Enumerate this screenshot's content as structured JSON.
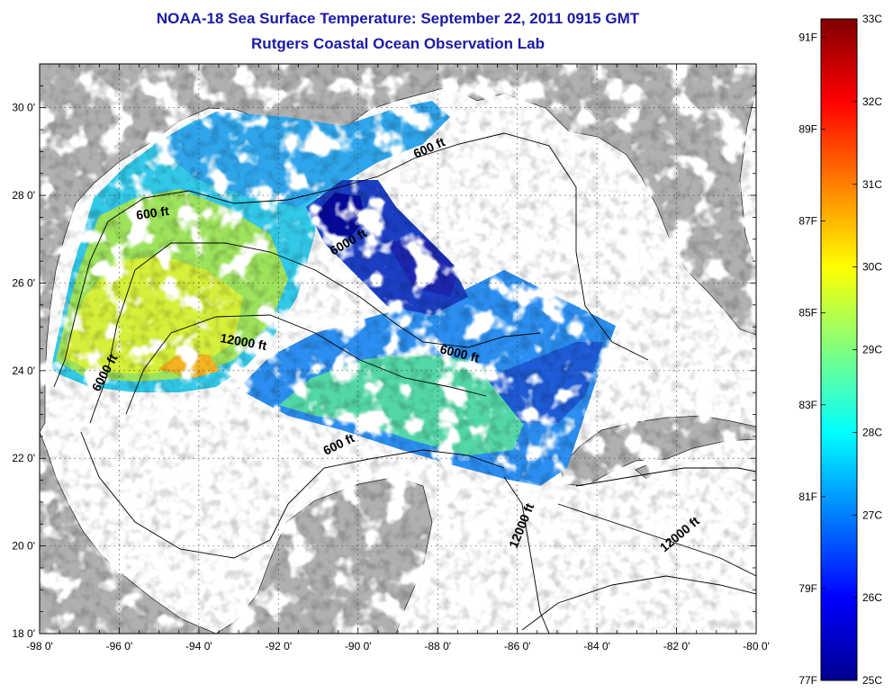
{
  "title": "NOAA-18 Sea Surface Temperature:  September 22, 2011 0915 GMT",
  "subtitle": "Rutgers Coastal Ocean Observation Lab",
  "map": {
    "lon_range": [
      -98,
      -80
    ],
    "lat_range": [
      18,
      31
    ],
    "x_ticks": [
      "-98 0'",
      "-96 0'",
      "-94 0'",
      "-92 0'",
      "-90 0'",
      "-88 0'",
      "-86 0'",
      "-84 0'",
      "-82 0'",
      "-80 0'"
    ],
    "y_ticks": [
      "18 0'",
      "20 0'",
      "22 0'",
      "24 0'",
      "26 0'",
      "28 0'",
      "30 0'"
    ],
    "land_color": "#b0b0b0",
    "no_data_color": "#ffffff",
    "contour_labels": [
      "600 ft",
      "600 ft",
      "600 ft",
      "6000 ft",
      "6000 ft",
      "6000 ft",
      "12000 ft",
      "12000 ft",
      "12000 ft"
    ]
  },
  "colorbar": {
    "min_c": 25,
    "max_c": 33,
    "celsius_labels": [
      "33C",
      "32C",
      "31C",
      "30C",
      "29C",
      "28C",
      "27C",
      "26C",
      "25C"
    ],
    "fahrenheit_labels": [
      "91F",
      "89F",
      "87F",
      "85F",
      "83F",
      "81F",
      "79F",
      "77F"
    ],
    "colormap": "jet"
  }
}
